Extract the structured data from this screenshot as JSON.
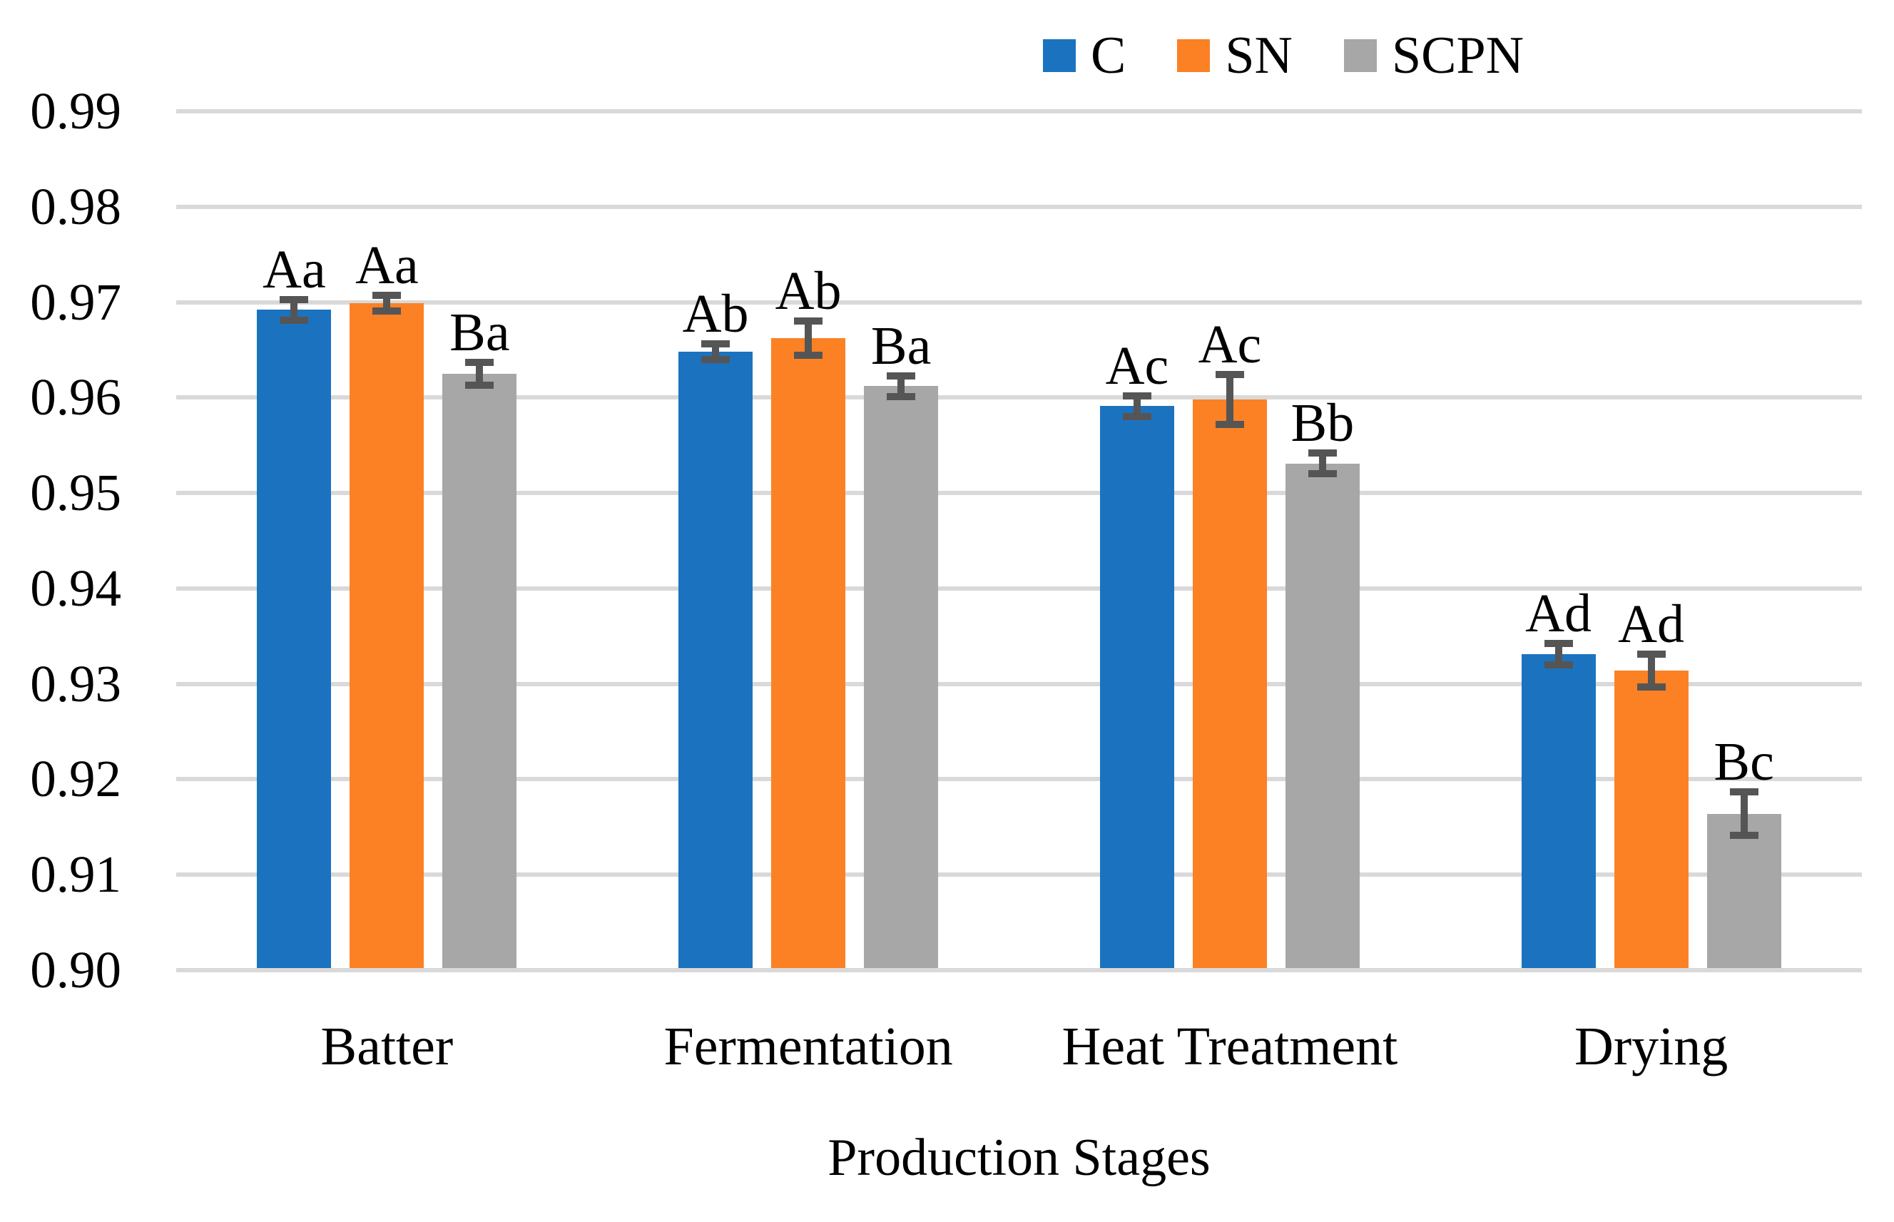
{
  "chart_data": {
    "type": "bar",
    "title": "",
    "xlabel": "Production Stages",
    "ylabel": "",
    "categories": [
      "Batter",
      "Fermentation",
      "Heat Treatment",
      "Drying"
    ],
    "series": [
      {
        "name": "C",
        "color": "#1B73BF",
        "values": [
          0.9692,
          0.9648,
          0.9591,
          0.9331
        ],
        "errors": [
          0.0011,
          0.0008,
          0.0011,
          0.0011
        ],
        "labels": [
          "Aa",
          "Ab",
          "Ac",
          "Ad"
        ]
      },
      {
        "name": "SN",
        "color": "#FC8125",
        "values": [
          0.9699,
          0.9662,
          0.9598,
          0.9314
        ],
        "errors": [
          0.0008,
          0.0018,
          0.0026,
          0.0017
        ],
        "labels": [
          "Aa",
          "Ab",
          "Ac",
          "Ad"
        ]
      },
      {
        "name": "SCPN",
        "color": "#A7A7A7",
        "values": [
          0.9625,
          0.9612,
          0.9531,
          0.9164
        ],
        "errors": [
          0.0012,
          0.0011,
          0.0011,
          0.0023
        ],
        "labels": [
          "Ba",
          "Ba",
          "Bb",
          "Bc"
        ]
      }
    ],
    "ylim": [
      0.9,
      0.99
    ],
    "y_ticks": [
      "0.90",
      "0.91",
      "0.92",
      "0.93",
      "0.94",
      "0.95",
      "0.96",
      "0.97",
      "0.98",
      "0.99"
    ],
    "grid": true,
    "legend_position": "top-center",
    "gridline_color": "#D9D9D9",
    "error_bar_color": "#555555",
    "text_color": "#000000",
    "background_color": "#FFFFFF"
  }
}
